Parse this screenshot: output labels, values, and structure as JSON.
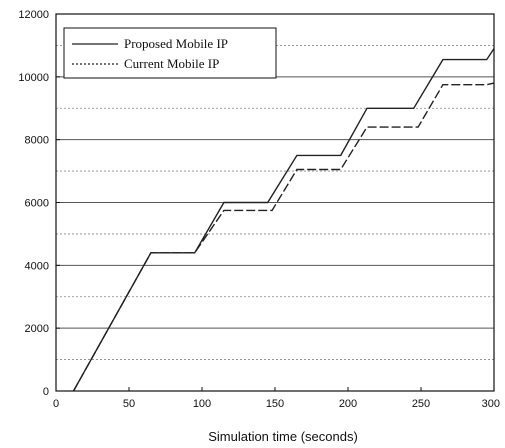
{
  "chart_data": {
    "type": "line",
    "title": "",
    "xlabel": "Simulation time (seconds)",
    "ylabel": "",
    "xlim": [
      0,
      300
    ],
    "ylim": [
      0,
      12000
    ],
    "x_ticks": [
      0,
      50,
      100,
      150,
      200,
      250,
      300
    ],
    "y_ticks": [
      0,
      2000,
      4000,
      6000,
      8000,
      10000,
      12000
    ],
    "grid": "horizontal",
    "legend_position": "top-left",
    "series": [
      {
        "name": "Proposed Mobile IP",
        "style": "solid",
        "color": "#222222",
        "x": [
          12,
          65,
          95,
          115,
          145,
          165,
          195,
          213,
          245,
          265,
          295,
          300
        ],
        "y": [
          0,
          4400,
          4400,
          6000,
          6000,
          7500,
          7500,
          9000,
          9000,
          10550,
          10550,
          10900
        ]
      },
      {
        "name": "Current Mobile IP",
        "style": "dashed",
        "color": "#222222",
        "x": [
          12,
          65,
          95,
          115,
          148,
          165,
          195,
          213,
          248,
          265,
          295,
          300
        ],
        "y": [
          0,
          4400,
          4400,
          5750,
          5750,
          7050,
          7050,
          8400,
          8400,
          9750,
          9750,
          9800
        ]
      }
    ]
  }
}
